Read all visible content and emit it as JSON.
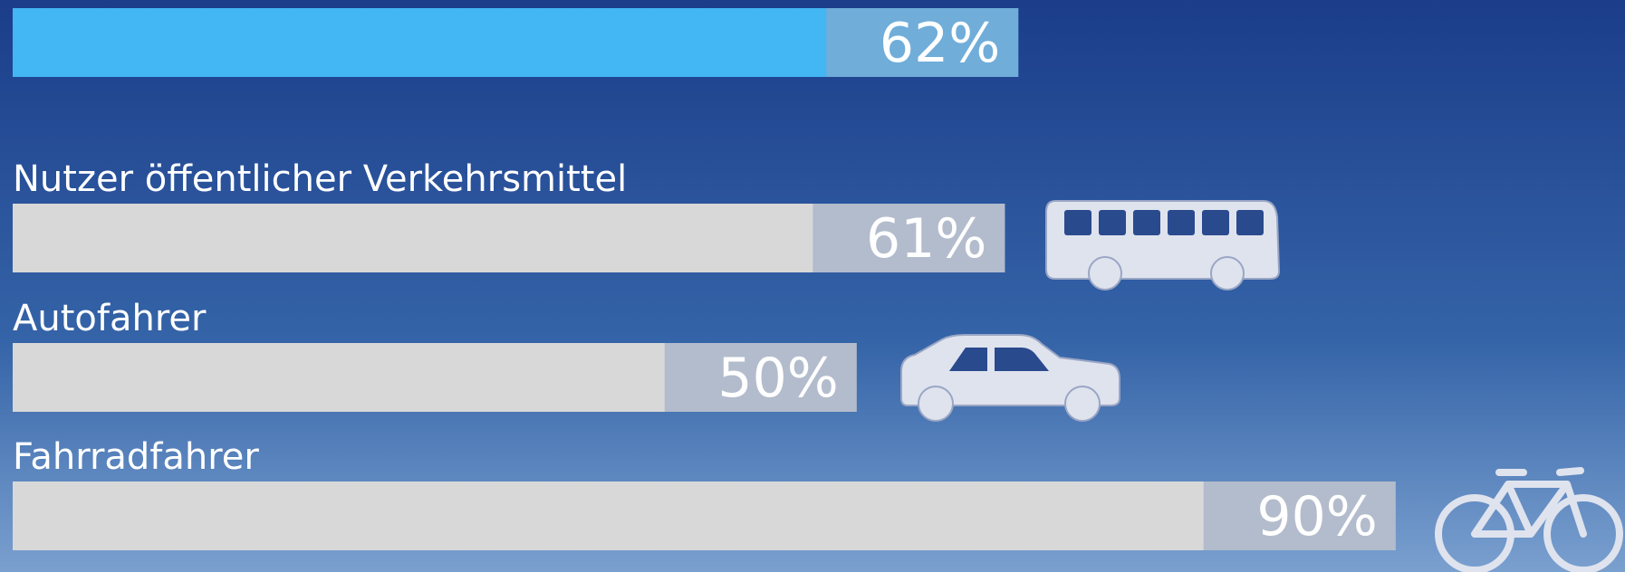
{
  "chart_data": {
    "type": "bar",
    "categories": [
      null,
      "Nutzer öffentlicher Verkehrsmittel",
      "Autofahrer",
      "Fahrradfahrer"
    ],
    "values": [
      62,
      61,
      50,
      90
    ],
    "value_labels": [
      "62%",
      "61%",
      "50%",
      "90%"
    ],
    "colors": [
      "#43b6f4",
      "#d8d8d8",
      "#d8d8d8",
      "#d8d8d8"
    ]
  }
}
